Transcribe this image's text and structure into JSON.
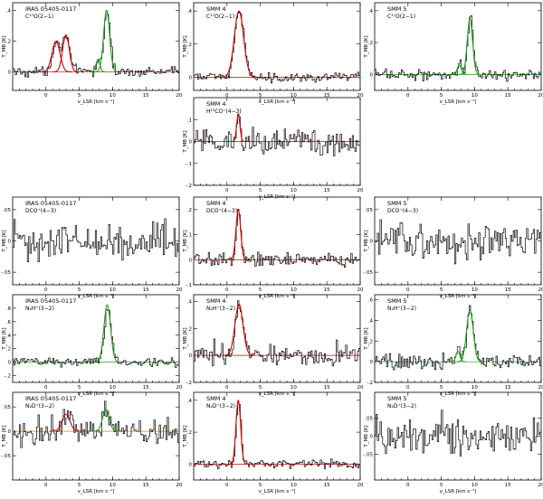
{
  "figure": {
    "colors": {
      "spectrum": "#000000",
      "fit_red": "#d00000",
      "fit_green": "#1aa01a"
    }
  },
  "chart_data": [
    {
      "id": "p00",
      "type": "line",
      "source": "IRAS 05405-0117",
      "transition": "C¹⁷O(2−1)",
      "xlabel": "v_LSR [km s⁻¹]",
      "ylabel": "T_MB [K]",
      "xlim": [
        -5,
        20
      ],
      "ylim": [
        -0.12,
        0.45
      ],
      "xticks": [
        0,
        5,
        10,
        15,
        20
      ],
      "yticks": [
        0,
        0.2,
        0.4
      ],
      "noise": 0.025,
      "baseline": "red",
      "fits": [
        {
          "color": "red",
          "center": 1.5,
          "amp": 0.2,
          "width": 0.6
        },
        {
          "color": "red",
          "center": 3.0,
          "amp": 0.24,
          "width": 0.5
        },
        {
          "color": "green",
          "center": 9.1,
          "amp": 0.4,
          "width": 0.45
        },
        {
          "color": "green",
          "center": 7.8,
          "amp": 0.08,
          "width": 0.3
        }
      ]
    },
    {
      "id": "p01",
      "type": "line",
      "source": "SMM 4",
      "transition": "C¹⁷O(2−1)",
      "xlabel": "v_LSR [km s⁻¹]",
      "ylabel": "T_MB [K]",
      "xlim": [
        -5,
        20
      ],
      "ylim": [
        -0.08,
        0.45
      ],
      "xticks": [
        0,
        5,
        10,
        15,
        20
      ],
      "yticks": [
        0,
        0.2,
        0.4
      ],
      "noise": 0.02,
      "baseline": "red",
      "fits": [
        {
          "color": "red",
          "center": 1.8,
          "amp": 0.4,
          "width": 0.7
        }
      ]
    },
    {
      "id": "p02",
      "type": "line",
      "source": "SMM 5",
      "transition": "C¹⁷O(2−1)",
      "xlabel": "v_LSR [km s⁻¹]",
      "ylabel": "T_MB [K]",
      "xlim": [
        -5,
        20
      ],
      "ylim": [
        -0.1,
        0.45
      ],
      "xticks": [
        0,
        5,
        10,
        15,
        20
      ],
      "yticks": [
        0,
        0.2,
        0.4
      ],
      "noise": 0.025,
      "baseline": "green",
      "fits": [
        {
          "color": "green",
          "center": 9.3,
          "amp": 0.35,
          "width": 0.4
        },
        {
          "color": "green",
          "center": 7.7,
          "amp": 0.06,
          "width": 0.3
        }
      ]
    },
    {
      "id": "p11",
      "type": "line",
      "source": "SMM 4",
      "transition": "H¹³CO⁺(4−3)",
      "xlabel": "v_LSR [km s⁻¹]",
      "ylabel": "T_MB [K]",
      "xlim": [
        -5,
        20
      ],
      "ylim": [
        -0.2,
        0.2
      ],
      "xticks": [
        0,
        5,
        10,
        15,
        20
      ],
      "yticks": [
        -0.2,
        -0.1,
        0,
        0.1
      ],
      "noise": 0.05,
      "baseline": "red",
      "fits": [
        {
          "color": "red",
          "center": 1.7,
          "amp": 0.12,
          "width": 0.25
        }
      ]
    },
    {
      "id": "p20",
      "type": "line",
      "source": "IRAS 05405-0117",
      "transition": "DCO⁺(4−3)",
      "xlabel": "v_LSR [km s⁻¹]",
      "ylabel": "T_MB [K]",
      "xlim": [
        -5,
        20
      ],
      "ylim": [
        -0.07,
        0.07
      ],
      "xticks": [
        0,
        5,
        10,
        15,
        20
      ],
      "yticks": [
        -0.05,
        0,
        0.05
      ],
      "noise": 0.022,
      "baseline": "none",
      "fits": []
    },
    {
      "id": "p21",
      "type": "line",
      "source": "SMM 4",
      "transition": "DCO⁺(4−3)",
      "xlabel": "v_LSR [km s⁻¹]",
      "ylabel": "T_MB [K]",
      "xlim": [
        -5,
        20
      ],
      "ylim": [
        -0.1,
        0.25
      ],
      "xticks": [
        0,
        5,
        10,
        15,
        20
      ],
      "yticks": [
        -0.1,
        0,
        0.1,
        0.2
      ],
      "noise": 0.02,
      "baseline": "red",
      "fits": [
        {
          "color": "red",
          "center": 1.7,
          "amp": 0.2,
          "width": 0.35
        }
      ]
    },
    {
      "id": "p22",
      "type": "line",
      "source": "SMM 5",
      "transition": "DCO⁺(4−3)",
      "xlabel": "v_LSR [km s⁻¹]",
      "ylabel": "T_MB [K]",
      "xlim": [
        -5,
        20
      ],
      "ylim": [
        -0.07,
        0.07
      ],
      "xticks": [
        0,
        5,
        10,
        15,
        20
      ],
      "yticks": [
        -0.05,
        0,
        0.05
      ],
      "noise": 0.022,
      "baseline": "none",
      "fits": []
    },
    {
      "id": "p30",
      "type": "line",
      "source": "IRAS 05405-0117",
      "transition": "N₂H⁺(3−2)",
      "xlabel": "v_LSR [km s⁻¹]",
      "ylabel": "T_MB [K]",
      "xlim": [
        -5,
        20
      ],
      "ylim": [
        -0.3,
        1.0
      ],
      "xticks": [
        0,
        5,
        10,
        15,
        20
      ],
      "yticks": [
        -0.2,
        0,
        0.2,
        0.4,
        0.6,
        0.8
      ],
      "noise": 0.05,
      "baseline": "green",
      "fits": [
        {
          "color": "green",
          "center": 9.2,
          "amp": 0.85,
          "width": 0.5
        }
      ]
    },
    {
      "id": "p31",
      "type": "line",
      "source": "SMM 4",
      "transition": "N₂H⁺(3−2)",
      "xlabel": "v_LSR [km s⁻¹]",
      "ylabel": "T_MB [K]",
      "xlim": [
        -5,
        20
      ],
      "ylim": [
        -0.2,
        0.45
      ],
      "xticks": [
        0,
        5,
        10,
        15,
        20
      ],
      "yticks": [
        -0.2,
        0,
        0.2,
        0.4
      ],
      "noise": 0.06,
      "baseline": "red",
      "fits": [
        {
          "color": "red",
          "center": 1.8,
          "amp": 0.38,
          "width": 0.6
        }
      ]
    },
    {
      "id": "p32",
      "type": "line",
      "source": "SMM 5",
      "transition": "N₂H⁺(3−2)",
      "xlabel": "v_LSR [km s⁻¹]",
      "ylabel": "T_MB [K]",
      "xlim": [
        -5,
        20
      ],
      "ylim": [
        -0.2,
        0.65
      ],
      "xticks": [
        0,
        5,
        10,
        15,
        20
      ],
      "yticks": [
        -0.2,
        0,
        0.2,
        0.4,
        0.6
      ],
      "noise": 0.06,
      "baseline": "green",
      "fits": [
        {
          "color": "green",
          "center": 9.3,
          "amp": 0.5,
          "width": 0.5
        },
        {
          "color": "green",
          "center": 7.5,
          "amp": 0.1,
          "width": 0.3
        }
      ]
    },
    {
      "id": "p40",
      "type": "line",
      "source": "IRAS 05405-0117",
      "transition": "N₂D⁺(3−2)",
      "xlabel": "v_LSR [km s⁻¹]",
      "ylabel": "T_MB [K]",
      "xlim": [
        -5,
        20
      ],
      "ylim": [
        -0.1,
        0.08
      ],
      "xticks": [
        0,
        5,
        10,
        15,
        20
      ],
      "yticks": [
        -0.05,
        0,
        0.05
      ],
      "noise": 0.022,
      "baseline": "orange",
      "fits": [
        {
          "color": "red",
          "center": 3.0,
          "amp": 0.035,
          "width": 0.6
        },
        {
          "color": "green",
          "center": 9.0,
          "amp": 0.045,
          "width": 0.5
        }
      ]
    },
    {
      "id": "p41",
      "type": "line",
      "source": "SMM 4",
      "transition": "N₂D⁺(3−2)",
      "xlabel": "v_LSR [km s⁻¹]",
      "ylabel": "T_MB [K]",
      "xlim": [
        -5,
        20
      ],
      "ylim": [
        -0.1,
        0.45
      ],
      "xticks": [
        0,
        5,
        10,
        15,
        20
      ],
      "yticks": [
        0,
        0.2,
        0.4
      ],
      "noise": 0.02,
      "baseline": "red",
      "fits": [
        {
          "color": "red",
          "center": 1.7,
          "amp": 0.4,
          "width": 0.35
        }
      ]
    },
    {
      "id": "p42",
      "type": "line",
      "source": "SMM 5",
      "transition": "N₂D⁺(3−2)",
      "xlabel": "v_LSR [km s⁻¹]",
      "ylabel": "T_MB [K]",
      "xlim": [
        -5,
        20
      ],
      "ylim": [
        -0.12,
        0.12
      ],
      "xticks": [
        0,
        5,
        10,
        15,
        20
      ],
      "yticks": [
        -0.05,
        0,
        0.05
      ],
      "noise": 0.035,
      "baseline": "none",
      "fits": []
    }
  ]
}
